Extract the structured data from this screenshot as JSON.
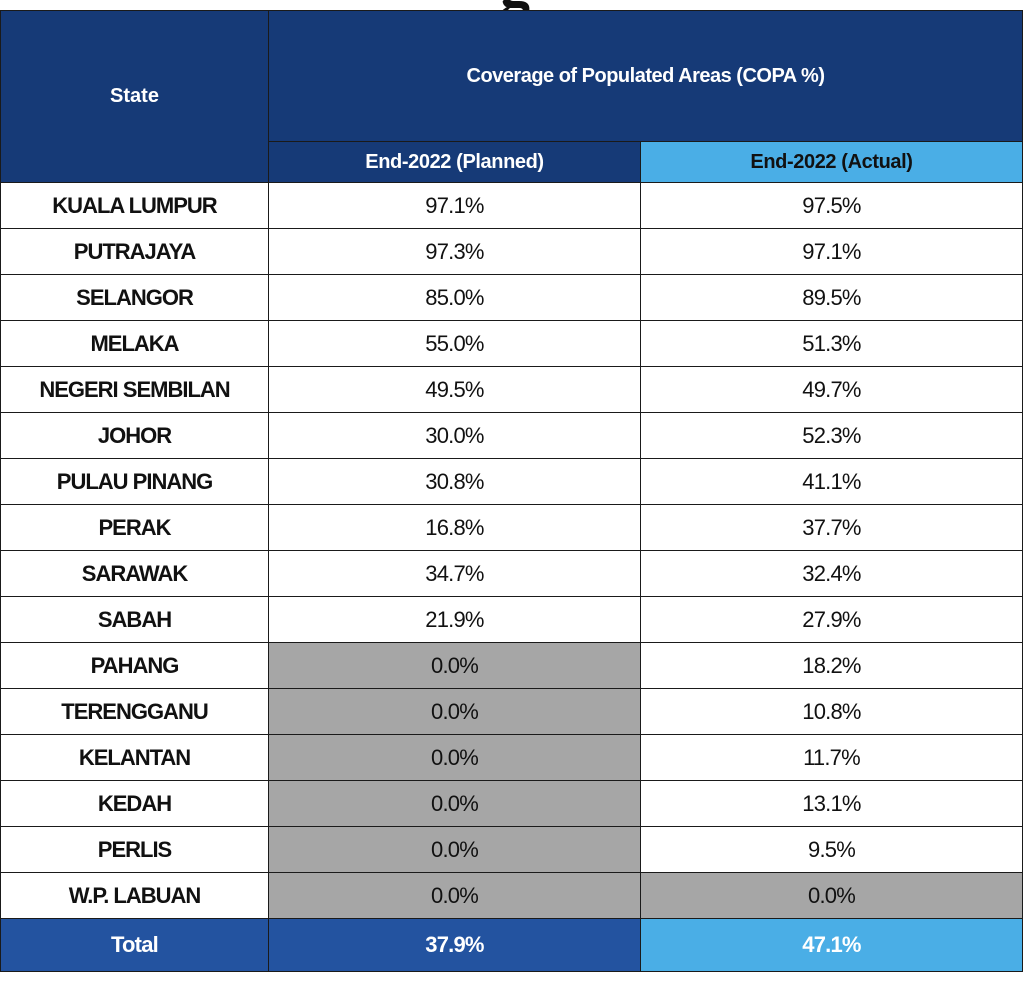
{
  "title_fragment": "g",
  "colors": {
    "header_dark": "#163a77",
    "header_light": "#4aaee6",
    "total_dark": "#2353a0",
    "not_applicable": "#a6a6a6"
  },
  "table": {
    "state_header": "State",
    "group_header": "Coverage of Populated Areas (COPA %)",
    "planned_header": "End-2022 (Planned)",
    "actual_header": "End-2022 (Actual)",
    "rows": [
      {
        "state": "KUALA LUMPUR",
        "planned": "97.1%",
        "actual": "97.5%",
        "planned_shaded": false,
        "actual_shaded": false
      },
      {
        "state": "PUTRAJAYA",
        "planned": "97.3%",
        "actual": "97.1%",
        "planned_shaded": false,
        "actual_shaded": false
      },
      {
        "state": "SELANGOR",
        "planned": "85.0%",
        "actual": "89.5%",
        "planned_shaded": false,
        "actual_shaded": false
      },
      {
        "state": "MELAKA",
        "planned": "55.0%",
        "actual": "51.3%",
        "planned_shaded": false,
        "actual_shaded": false
      },
      {
        "state": "NEGERI SEMBILAN",
        "planned": "49.5%",
        "actual": "49.7%",
        "planned_shaded": false,
        "actual_shaded": false
      },
      {
        "state": "JOHOR",
        "planned": "30.0%",
        "actual": "52.3%",
        "planned_shaded": false,
        "actual_shaded": false
      },
      {
        "state": "PULAU PINANG",
        "planned": "30.8%",
        "actual": "41.1%",
        "planned_shaded": false,
        "actual_shaded": false
      },
      {
        "state": "PERAK",
        "planned": "16.8%",
        "actual": "37.7%",
        "planned_shaded": false,
        "actual_shaded": false
      },
      {
        "state": "SARAWAK",
        "planned": "34.7%",
        "actual": "32.4%",
        "planned_shaded": false,
        "actual_shaded": false
      },
      {
        "state": "SABAH",
        "planned": "21.9%",
        "actual": "27.9%",
        "planned_shaded": false,
        "actual_shaded": false
      },
      {
        "state": "PAHANG",
        "planned": "0.0%",
        "actual": "18.2%",
        "planned_shaded": true,
        "actual_shaded": false
      },
      {
        "state": "TERENGGANU",
        "planned": "0.0%",
        "actual": "10.8%",
        "planned_shaded": true,
        "actual_shaded": false
      },
      {
        "state": "KELANTAN",
        "planned": "0.0%",
        "actual": "11.7%",
        "planned_shaded": true,
        "actual_shaded": false
      },
      {
        "state": "KEDAH",
        "planned": "0.0%",
        "actual": "13.1%",
        "planned_shaded": true,
        "actual_shaded": false
      },
      {
        "state": "PERLIS",
        "planned": "0.0%",
        "actual": "9.5%",
        "planned_shaded": true,
        "actual_shaded": false
      },
      {
        "state": "W.P. LABUAN",
        "planned": "0.0%",
        "actual": "0.0%",
        "planned_shaded": true,
        "actual_shaded": true
      }
    ],
    "total": {
      "label": "Total",
      "planned": "37.9%",
      "actual": "47.1%"
    }
  }
}
